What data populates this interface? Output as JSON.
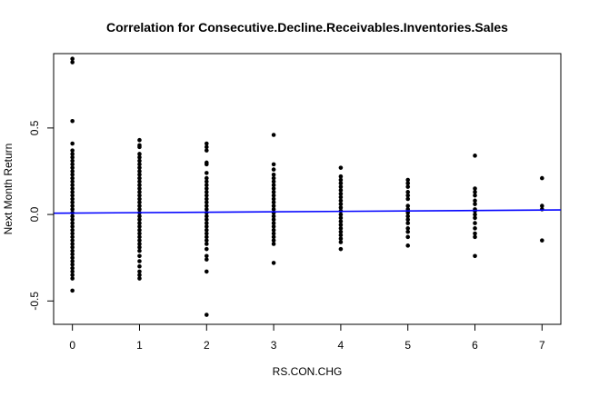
{
  "chart_data": {
    "type": "scatter",
    "title": "Correlation for Consecutive.Decline.Receivables.Inventories.Sales",
    "xlabel": "RS.CON.CHG",
    "ylabel": "Next Month Return",
    "xlim": [
      -0.28,
      7.28
    ],
    "ylim": [
      -0.635,
      0.93
    ],
    "x_ticks": [
      0,
      1,
      2,
      3,
      4,
      5,
      6,
      7
    ],
    "y_ticks": [
      -0.5,
      0.0,
      0.5
    ],
    "x_tick_labels": [
      "0",
      "1",
      "2",
      "3",
      "4",
      "5",
      "6",
      "7"
    ],
    "y_tick_labels": [
      "-0.5",
      "0.0",
      "0.5"
    ],
    "grid": false,
    "legend": "none",
    "point_color": "#000000",
    "regression_line": {
      "color": "#0000ff",
      "intercept": 0.008,
      "slope": 0.0025
    },
    "points": [
      {
        "x": 0,
        "y": 0.9
      },
      {
        "x": 0,
        "y": 0.88
      },
      {
        "x": 0,
        "y": 0.54
      },
      {
        "x": 0,
        "y": 0.41
      },
      {
        "x": 0,
        "y": 0.37
      },
      {
        "x": 0,
        "y": 0.35
      },
      {
        "x": 0,
        "y": 0.33
      },
      {
        "x": 0,
        "y": 0.31
      },
      {
        "x": 0,
        "y": 0.29
      },
      {
        "x": 0,
        "y": 0.27
      },
      {
        "x": 0,
        "y": 0.25
      },
      {
        "x": 0,
        "y": 0.23
      },
      {
        "x": 0,
        "y": 0.21
      },
      {
        "x": 0,
        "y": 0.19
      },
      {
        "x": 0,
        "y": 0.17
      },
      {
        "x": 0,
        "y": 0.15
      },
      {
        "x": 0,
        "y": 0.13
      },
      {
        "x": 0,
        "y": 0.11
      },
      {
        "x": 0,
        "y": 0.09
      },
      {
        "x": 0,
        "y": 0.07
      },
      {
        "x": 0,
        "y": 0.05
      },
      {
        "x": 0,
        "y": 0.03
      },
      {
        "x": 0,
        "y": 0.01
      },
      {
        "x": 0,
        "y": -0.01
      },
      {
        "x": 0,
        "y": -0.03
      },
      {
        "x": 0,
        "y": -0.05
      },
      {
        "x": 0,
        "y": -0.07
      },
      {
        "x": 0,
        "y": -0.09
      },
      {
        "x": 0,
        "y": -0.11
      },
      {
        "x": 0,
        "y": -0.13
      },
      {
        "x": 0,
        "y": -0.15
      },
      {
        "x": 0,
        "y": -0.17
      },
      {
        "x": 0,
        "y": -0.19
      },
      {
        "x": 0,
        "y": -0.21
      },
      {
        "x": 0,
        "y": -0.23
      },
      {
        "x": 0,
        "y": -0.25
      },
      {
        "x": 0,
        "y": -0.27
      },
      {
        "x": 0,
        "y": -0.29
      },
      {
        "x": 0,
        "y": -0.31
      },
      {
        "x": 0,
        "y": -0.33
      },
      {
        "x": 0,
        "y": -0.35
      },
      {
        "x": 0,
        "y": -0.37
      },
      {
        "x": 0,
        "y": -0.44
      },
      {
        "x": 1,
        "y": 0.43
      },
      {
        "x": 1,
        "y": 0.4
      },
      {
        "x": 1,
        "y": 0.39
      },
      {
        "x": 1,
        "y": 0.35
      },
      {
        "x": 1,
        "y": 0.33
      },
      {
        "x": 1,
        "y": 0.31
      },
      {
        "x": 1,
        "y": 0.29
      },
      {
        "x": 1,
        "y": 0.27
      },
      {
        "x": 1,
        "y": 0.25
      },
      {
        "x": 1,
        "y": 0.23
      },
      {
        "x": 1,
        "y": 0.21
      },
      {
        "x": 1,
        "y": 0.19
      },
      {
        "x": 1,
        "y": 0.17
      },
      {
        "x": 1,
        "y": 0.15
      },
      {
        "x": 1,
        "y": 0.13
      },
      {
        "x": 1,
        "y": 0.11
      },
      {
        "x": 1,
        "y": 0.09
      },
      {
        "x": 1,
        "y": 0.07
      },
      {
        "x": 1,
        "y": 0.05
      },
      {
        "x": 1,
        "y": 0.03
      },
      {
        "x": 1,
        "y": 0.01
      },
      {
        "x": 1,
        "y": -0.01
      },
      {
        "x": 1,
        "y": -0.03
      },
      {
        "x": 1,
        "y": -0.05
      },
      {
        "x": 1,
        "y": -0.07
      },
      {
        "x": 1,
        "y": -0.09
      },
      {
        "x": 1,
        "y": -0.11
      },
      {
        "x": 1,
        "y": -0.13
      },
      {
        "x": 1,
        "y": -0.15
      },
      {
        "x": 1,
        "y": -0.17
      },
      {
        "x": 1,
        "y": -0.19
      },
      {
        "x": 1,
        "y": -0.21
      },
      {
        "x": 1,
        "y": -0.24
      },
      {
        "x": 1,
        "y": -0.27
      },
      {
        "x": 1,
        "y": -0.3
      },
      {
        "x": 1,
        "y": -0.33
      },
      {
        "x": 1,
        "y": -0.35
      },
      {
        "x": 1,
        "y": -0.37
      },
      {
        "x": 2,
        "y": 0.41
      },
      {
        "x": 2,
        "y": 0.39
      },
      {
        "x": 2,
        "y": 0.37
      },
      {
        "x": 2,
        "y": 0.3
      },
      {
        "x": 2,
        "y": 0.29
      },
      {
        "x": 2,
        "y": 0.24
      },
      {
        "x": 2,
        "y": 0.21
      },
      {
        "x": 2,
        "y": 0.19
      },
      {
        "x": 2,
        "y": 0.17
      },
      {
        "x": 2,
        "y": 0.15
      },
      {
        "x": 2,
        "y": 0.13
      },
      {
        "x": 2,
        "y": 0.11
      },
      {
        "x": 2,
        "y": 0.09
      },
      {
        "x": 2,
        "y": 0.07
      },
      {
        "x": 2,
        "y": 0.05
      },
      {
        "x": 2,
        "y": 0.03
      },
      {
        "x": 2,
        "y": 0.01
      },
      {
        "x": 2,
        "y": -0.01
      },
      {
        "x": 2,
        "y": -0.03
      },
      {
        "x": 2,
        "y": -0.05
      },
      {
        "x": 2,
        "y": -0.07
      },
      {
        "x": 2,
        "y": -0.09
      },
      {
        "x": 2,
        "y": -0.11
      },
      {
        "x": 2,
        "y": -0.13
      },
      {
        "x": 2,
        "y": -0.15
      },
      {
        "x": 2,
        "y": -0.17
      },
      {
        "x": 2,
        "y": -0.2
      },
      {
        "x": 2,
        "y": -0.24
      },
      {
        "x": 2,
        "y": -0.26
      },
      {
        "x": 2,
        "y": -0.33
      },
      {
        "x": 2,
        "y": -0.58
      },
      {
        "x": 3,
        "y": 0.46
      },
      {
        "x": 3,
        "y": 0.29
      },
      {
        "x": 3,
        "y": 0.26
      },
      {
        "x": 3,
        "y": 0.23
      },
      {
        "x": 3,
        "y": 0.21
      },
      {
        "x": 3,
        "y": 0.19
      },
      {
        "x": 3,
        "y": 0.17
      },
      {
        "x": 3,
        "y": 0.15
      },
      {
        "x": 3,
        "y": 0.13
      },
      {
        "x": 3,
        "y": 0.11
      },
      {
        "x": 3,
        "y": 0.09
      },
      {
        "x": 3,
        "y": 0.07
      },
      {
        "x": 3,
        "y": 0.05
      },
      {
        "x": 3,
        "y": 0.03
      },
      {
        "x": 3,
        "y": 0.01
      },
      {
        "x": 3,
        "y": -0.01
      },
      {
        "x": 3,
        "y": -0.03
      },
      {
        "x": 3,
        "y": -0.05
      },
      {
        "x": 3,
        "y": -0.07
      },
      {
        "x": 3,
        "y": -0.09
      },
      {
        "x": 3,
        "y": -0.11
      },
      {
        "x": 3,
        "y": -0.13
      },
      {
        "x": 3,
        "y": -0.15
      },
      {
        "x": 3,
        "y": -0.17
      },
      {
        "x": 3,
        "y": -0.28
      },
      {
        "x": 4,
        "y": 0.27
      },
      {
        "x": 4,
        "y": 0.22
      },
      {
        "x": 4,
        "y": 0.2
      },
      {
        "x": 4,
        "y": 0.18
      },
      {
        "x": 4,
        "y": 0.16
      },
      {
        "x": 4,
        "y": 0.14
      },
      {
        "x": 4,
        "y": 0.12
      },
      {
        "x": 4,
        "y": 0.1
      },
      {
        "x": 4,
        "y": 0.08
      },
      {
        "x": 4,
        "y": 0.06
      },
      {
        "x": 4,
        "y": 0.04
      },
      {
        "x": 4,
        "y": 0.02
      },
      {
        "x": 4,
        "y": 0.0
      },
      {
        "x": 4,
        "y": -0.02
      },
      {
        "x": 4,
        "y": -0.04
      },
      {
        "x": 4,
        "y": -0.06
      },
      {
        "x": 4,
        "y": -0.08
      },
      {
        "x": 4,
        "y": -0.1
      },
      {
        "x": 4,
        "y": -0.12
      },
      {
        "x": 4,
        "y": -0.14
      },
      {
        "x": 4,
        "y": -0.16
      },
      {
        "x": 4,
        "y": -0.2
      },
      {
        "x": 5,
        "y": 0.2
      },
      {
        "x": 5,
        "y": 0.18
      },
      {
        "x": 5,
        "y": 0.16
      },
      {
        "x": 5,
        "y": 0.13
      },
      {
        "x": 5,
        "y": 0.11
      },
      {
        "x": 5,
        "y": 0.09
      },
      {
        "x": 5,
        "y": 0.05
      },
      {
        "x": 5,
        "y": 0.03
      },
      {
        "x": 5,
        "y": 0.01
      },
      {
        "x": 5,
        "y": -0.01
      },
      {
        "x": 5,
        "y": -0.03
      },
      {
        "x": 5,
        "y": -0.05
      },
      {
        "x": 5,
        "y": -0.08
      },
      {
        "x": 5,
        "y": -0.1
      },
      {
        "x": 5,
        "y": -0.13
      },
      {
        "x": 5,
        "y": -0.18
      },
      {
        "x": 6,
        "y": 0.34
      },
      {
        "x": 6,
        "y": 0.15
      },
      {
        "x": 6,
        "y": 0.13
      },
      {
        "x": 6,
        "y": 0.11
      },
      {
        "x": 6,
        "y": 0.08
      },
      {
        "x": 6,
        "y": 0.06
      },
      {
        "x": 6,
        "y": 0.03
      },
      {
        "x": 6,
        "y": 0.02
      },
      {
        "x": 6,
        "y": 0.0
      },
      {
        "x": 6,
        "y": -0.02
      },
      {
        "x": 6,
        "y": -0.05
      },
      {
        "x": 6,
        "y": -0.08
      },
      {
        "x": 6,
        "y": -0.11
      },
      {
        "x": 6,
        "y": -0.13
      },
      {
        "x": 6,
        "y": -0.24
      },
      {
        "x": 7,
        "y": 0.21
      },
      {
        "x": 7,
        "y": 0.05
      },
      {
        "x": 7,
        "y": 0.03
      },
      {
        "x": 7,
        "y": -0.15
      }
    ]
  }
}
